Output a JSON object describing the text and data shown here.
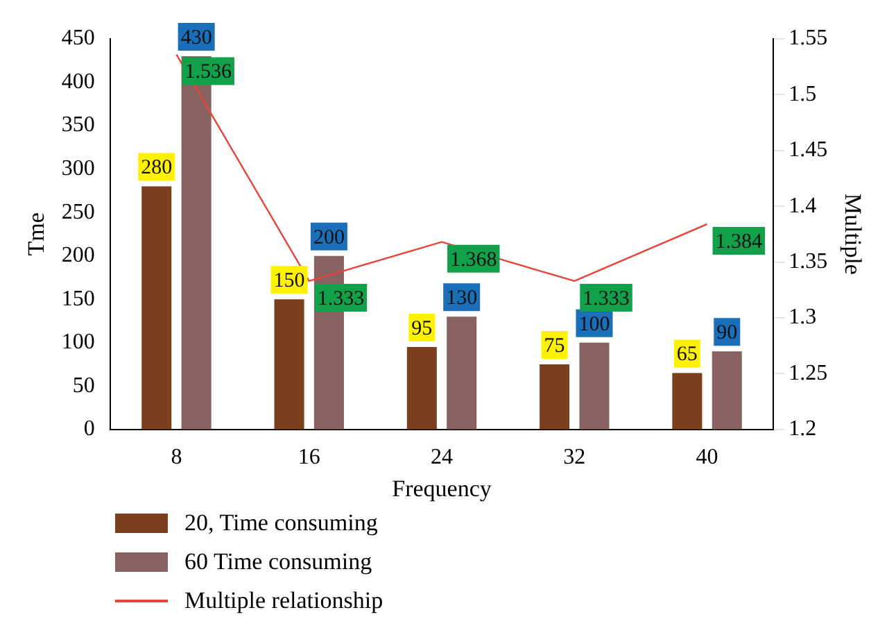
{
  "chart_data": {
    "type": "bar",
    "xlabel": "Frequency",
    "ylabel": "Tme",
    "y2label": "Multiple",
    "categories": [
      "8",
      "16",
      "24",
      "32",
      "40"
    ],
    "series": [
      {
        "name": "20, Time consuming",
        "color": "#7a3f1c",
        "values": [
          280,
          150,
          95,
          75,
          65
        ]
      },
      {
        "name": "60 Time consuming",
        "color": "#876260",
        "values": [
          430,
          200,
          130,
          100,
          90
        ]
      },
      {
        "name": "Multiple relationship",
        "type": "line",
        "axis": "y2",
        "color": "#e8443a",
        "values": [
          1.536,
          1.333,
          1.368,
          1.333,
          1.384
        ]
      }
    ],
    "ylim": [
      0,
      450
    ],
    "yticks": [
      0,
      50,
      100,
      150,
      200,
      250,
      300,
      350,
      400,
      450
    ],
    "y2lim": [
      1.2,
      1.55
    ],
    "y2ticks": [
      1.2,
      1.25,
      1.3,
      1.35,
      1.4,
      1.45,
      1.5,
      1.55
    ],
    "data_labels": true,
    "legend": "bottom left",
    "grid": false,
    "marker": "none"
  }
}
